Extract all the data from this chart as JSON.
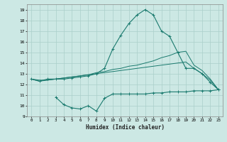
{
  "xlabel": "Humidex (Indice chaleur)",
  "x": [
    0,
    1,
    2,
    3,
    4,
    5,
    6,
    7,
    8,
    9,
    10,
    11,
    12,
    13,
    14,
    15,
    16,
    17,
    18,
    19,
    20,
    21,
    22,
    23
  ],
  "line1": [
    12.5,
    12.3,
    12.5,
    12.5,
    12.5,
    12.6,
    12.7,
    12.8,
    13.0,
    13.5,
    15.3,
    16.6,
    17.7,
    18.5,
    19.0,
    18.5,
    17.0,
    16.5,
    15.0,
    13.5,
    13.5,
    13.0,
    12.2,
    11.5
  ],
  "line2": [
    12.5,
    12.4,
    12.4,
    12.5,
    12.6,
    12.7,
    12.8,
    12.9,
    13.1,
    13.2,
    13.4,
    13.5,
    13.7,
    13.8,
    14.0,
    14.2,
    14.5,
    14.7,
    15.0,
    15.1,
    13.8,
    13.3,
    12.5,
    11.5
  ],
  "line3": [
    12.5,
    12.3,
    12.4,
    12.5,
    12.6,
    12.7,
    12.8,
    12.9,
    13.0,
    13.1,
    13.2,
    13.3,
    13.4,
    13.5,
    13.6,
    13.7,
    13.8,
    13.9,
    14.0,
    14.1,
    13.5,
    13.0,
    12.4,
    11.5
  ],
  "line4": [
    null,
    null,
    null,
    10.8,
    10.1,
    9.8,
    9.7,
    10.0,
    9.5,
    10.7,
    11.1,
    11.1,
    11.1,
    11.1,
    11.1,
    11.2,
    11.2,
    11.3,
    11.3,
    11.3,
    11.4,
    11.4,
    11.4,
    11.5
  ],
  "line_color": "#1a7a6e",
  "bg_color": "#cce8e4",
  "grid_color": "#aacfca",
  "ylim": [
    9,
    19.5
  ],
  "xlim": [
    -0.5,
    23.5
  ]
}
